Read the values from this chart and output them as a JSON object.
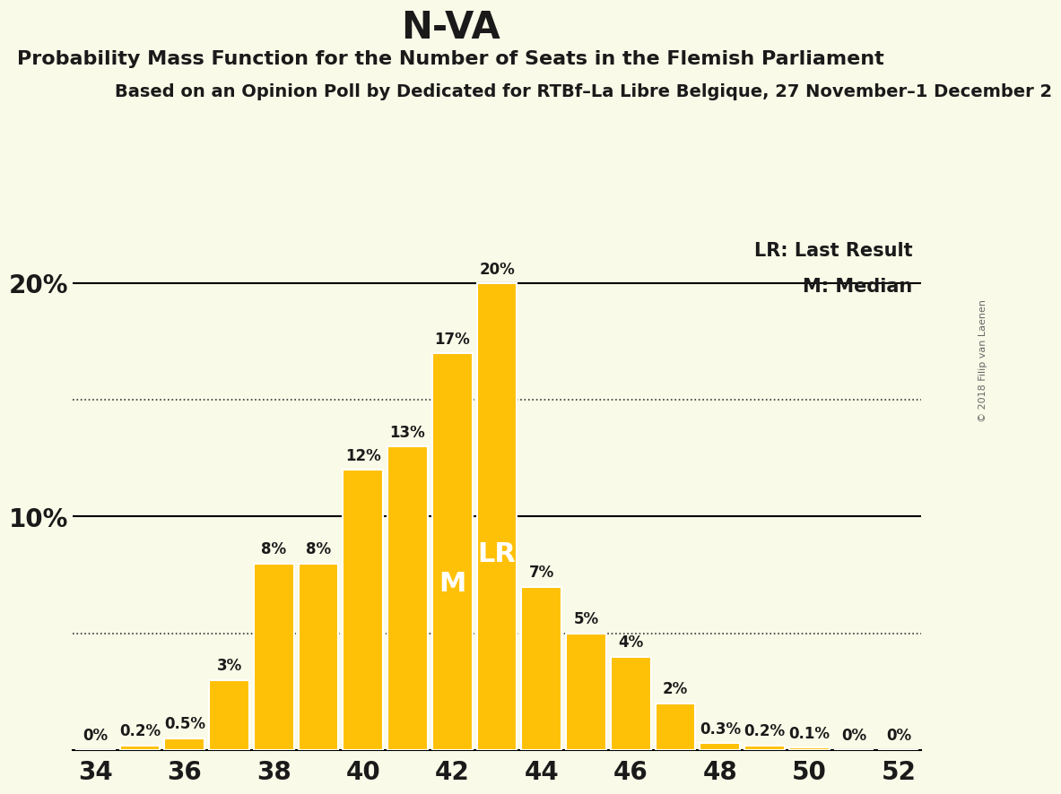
{
  "title": "N-VA",
  "subtitle1": "Probability Mass Function for the Number of Seats in the Flemish Parliament",
  "subtitle2": "Based on an Opinion Poll by Dedicated for RTBf–La Libre Belgique, 27 November–1 December 2",
  "copyright": "© 2018 Filip van Laenen",
  "seats": [
    34,
    35,
    36,
    37,
    38,
    39,
    40,
    41,
    42,
    43,
    44,
    45,
    46,
    47,
    48,
    49,
    50,
    51,
    52
  ],
  "probs": [
    0.0,
    0.2,
    0.5,
    3.0,
    8.0,
    8.0,
    12.0,
    13.0,
    17.0,
    20.0,
    7.0,
    5.0,
    4.0,
    2.0,
    0.3,
    0.2,
    0.1,
    0.0,
    0.0
  ],
  "bar_color": "#FFC107",
  "bg_color": "#FAFAE8",
  "median_seat": 42,
  "lr_seat": 43,
  "solid_hlines": [
    10.0,
    20.0
  ],
  "dotted_hlines": [
    5.0,
    15.0
  ],
  "legend_lr": "LR: Last Result",
  "legend_m": "M: Median",
  "bar_label_fontsize": 12,
  "title_fontsize": 30,
  "subtitle1_fontsize": 16,
  "subtitle2_fontsize": 14,
  "ytick_fontsize": 20,
  "xtick_fontsize": 20,
  "legend_fontsize": 15,
  "ylim": [
    0,
    22
  ],
  "xlim": [
    33.5,
    52.5
  ],
  "bar_width": 0.9
}
